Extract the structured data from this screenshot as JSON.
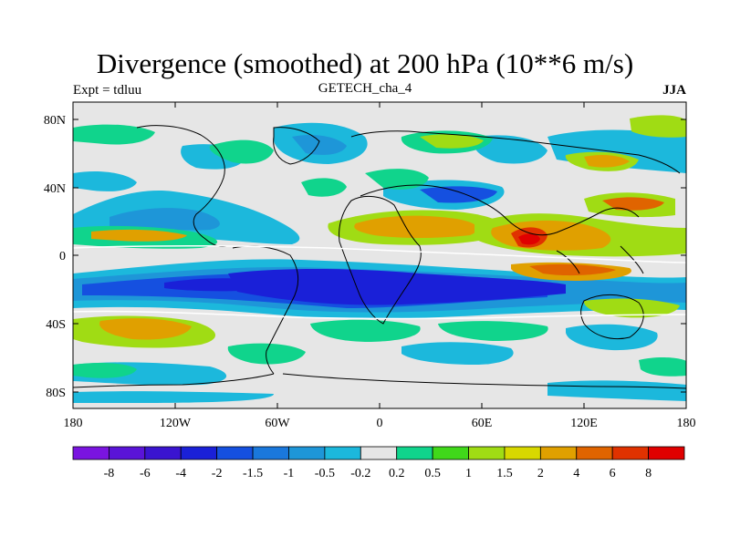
{
  "title": "Divergence (smoothed) at 200 hPa (10**6 m/s)",
  "left_subtitle": "Expt = tdluu",
  "center_subtitle": "GETECH_cha_4",
  "right_subtitle": "JJA",
  "lat_labels": [
    "80N",
    "40N",
    "0",
    "40S",
    "80S"
  ],
  "lon_labels": [
    "180",
    "120W",
    "60W",
    "0",
    "60E",
    "120E",
    "180"
  ],
  "colorbar": {
    "labels": [
      "-8",
      "-6",
      "-4",
      "-2",
      "-1.5",
      "-1",
      "-0.5",
      "-0.2",
      "0.2",
      "0.5",
      "1",
      "1.5",
      "2",
      "4",
      "6",
      "8"
    ],
    "colors": [
      "#7a14e0",
      "#5a14d8",
      "#3a14d0",
      "#1a20d8",
      "#1550e0",
      "#1a78dc",
      "#1e96d8",
      "#1cb8dc",
      "#e6e6e6",
      "#10d48c",
      "#40d81a",
      "#a0dc14",
      "#d8d800",
      "#e0a000",
      "#e06400",
      "#e03200",
      "#e00000"
    ]
  },
  "colors": {
    "neutral": "#e6e6e6",
    "coast": "#000000",
    "zero_contour": "#ffffff"
  }
}
